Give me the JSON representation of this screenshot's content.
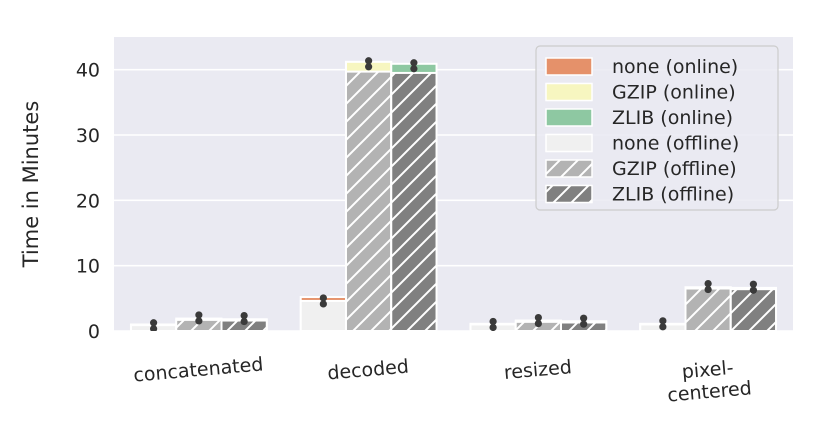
{
  "chart_data": {
    "type": "bar",
    "ylabel": "Time in Minutes",
    "xlabel": "",
    "ylim": [
      0,
      45
    ],
    "yticks": [
      0,
      10,
      20,
      30,
      40
    ],
    "grid": true,
    "legend_position": "top-right",
    "categories": [
      {
        "lines": [
          "concatenated"
        ]
      },
      {
        "lines": [
          "decoded"
        ]
      },
      {
        "lines": [
          "resized"
        ]
      },
      {
        "lines": [
          "pixel-",
          "centered"
        ]
      }
    ],
    "series": [
      {
        "name": "none (offline)",
        "color": "#f0f0f0",
        "hatch": false,
        "values": [
          0.9,
          4.6,
          1.0,
          1.0
        ]
      },
      {
        "name": "GZIP (offline)",
        "color": "#b3b3b3",
        "hatch": true,
        "values": [
          1.7,
          39.7,
          1.4,
          6.5
        ]
      },
      {
        "name": "ZLIB (offline)",
        "color": "#808080",
        "hatch": true,
        "values": [
          1.6,
          39.5,
          1.3,
          6.4
        ]
      }
    ],
    "online_series": [
      {
        "name": "none (online)",
        "color": "#e5916a",
        "values": [
          1.0,
          5.2,
          1.1,
          1.1
        ],
        "markers": [
          0.8,
          4.6,
          1.0,
          1.1
        ]
      },
      {
        "name": "GZIP (online)",
        "color": "#f7f6c0",
        "values": [
          1.9,
          41.2,
          1.6,
          6.7
        ],
        "markers": [
          2.0,
          40.9,
          1.6,
          6.8
        ]
      },
      {
        "name": "ZLIB (online)",
        "color": "#8ec8a2",
        "values": [
          1.8,
          40.9,
          1.5,
          6.6
        ],
        "markers": [
          1.9,
          40.6,
          1.5,
          6.7
        ]
      }
    ],
    "legend_order": [
      "none (online)",
      "GZIP (online)",
      "ZLIB (online)",
      "none (offline)",
      "GZIP (offline)",
      "ZLIB (offline)"
    ]
  }
}
